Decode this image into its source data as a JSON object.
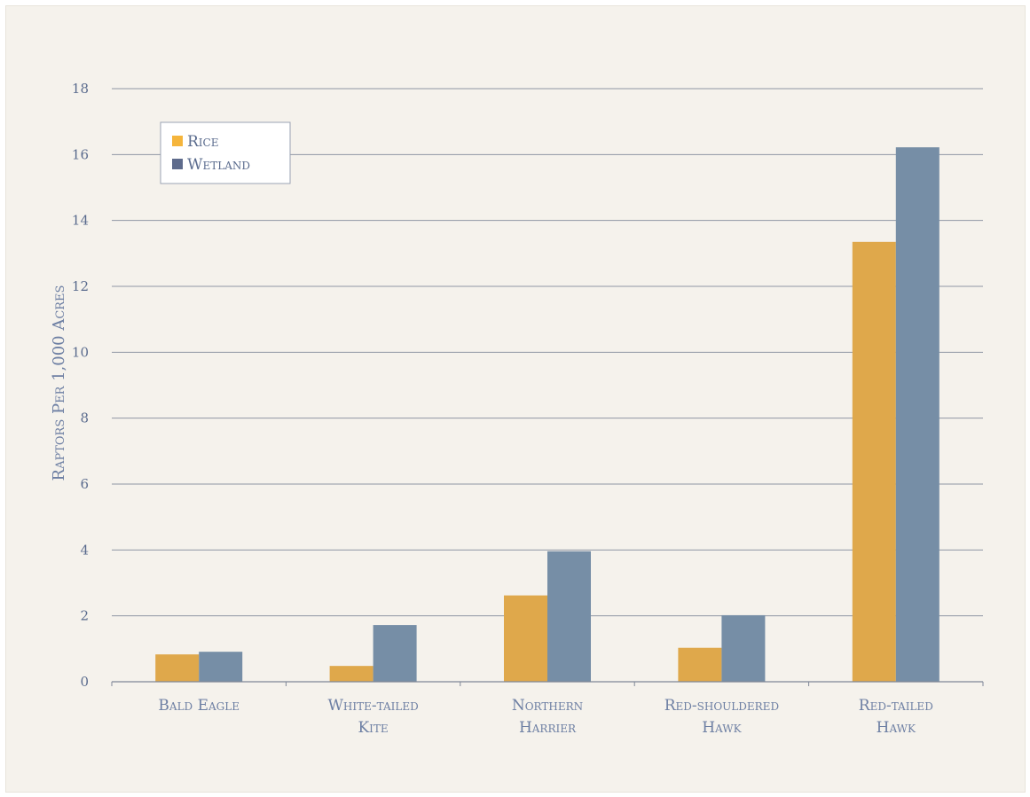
{
  "chart_data": {
    "type": "bar",
    "title": "",
    "xlabel": "",
    "ylabel": "Raptors Per 1,000 Acres",
    "ylim": [
      0,
      18
    ],
    "yticks": [
      0,
      2,
      4,
      6,
      8,
      10,
      12,
      14,
      16,
      18
    ],
    "grid": true,
    "legend_position": "top-left",
    "categories": [
      [
        "Bald Eagle"
      ],
      [
        "White-tailed",
        "Kite"
      ],
      [
        "Northern",
        "Harrier"
      ],
      [
        "Red-shouldered",
        "Hawk"
      ],
      [
        "Red-tailed",
        "Hawk"
      ]
    ],
    "series": [
      {
        "name": "Rice",
        "color": "#dfa84b",
        "values": [
          0.83,
          0.48,
          2.62,
          1.03,
          13.35
        ]
      },
      {
        "name": "Wetland",
        "color": "#768ea6",
        "values": [
          0.91,
          1.72,
          3.96,
          2.02,
          16.22
        ]
      }
    ],
    "legend_swatch_colors": [
      "#f5b53c",
      "#5e6b8c"
    ]
  }
}
